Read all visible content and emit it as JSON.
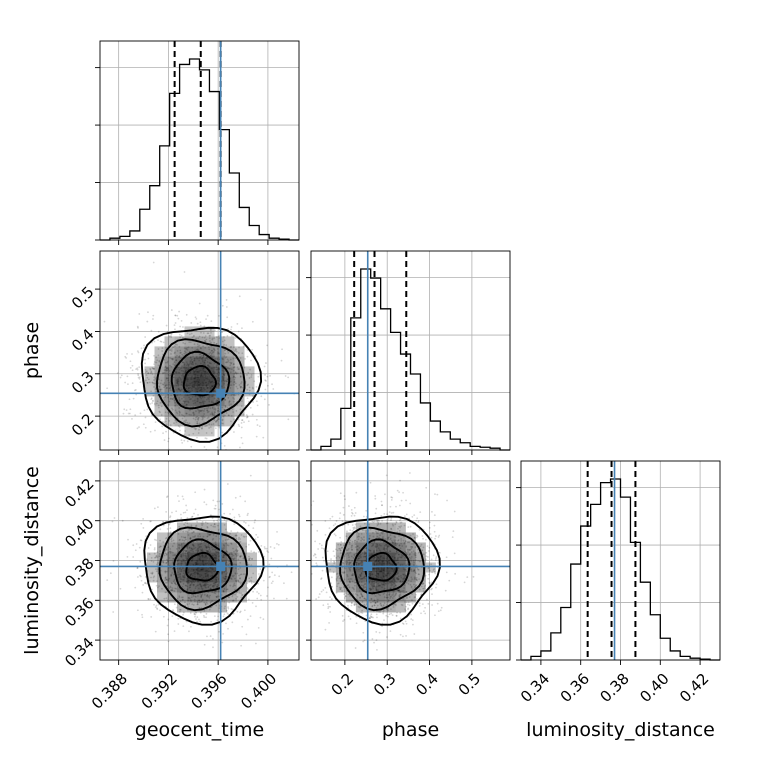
{
  "figure": {
    "type": "corner_plot"
  },
  "colors": {
    "truth": "#4682b4",
    "density": "#000000",
    "grid": "#b0b0b0"
  },
  "chart_data": {
    "type": "corner",
    "parameters": [
      {
        "name": "geocent_time",
        "label": "geocent_time",
        "range": [
          0.3865,
          0.4025
        ],
        "ticks": [
          0.388,
          0.392,
          0.396,
          0.4
        ],
        "tick_labels": [
          "0.388",
          "0.392",
          "0.396",
          "0.400"
        ],
        "truth": 0.3962,
        "quantiles": [
          0.3925,
          0.3946,
          0.3962
        ],
        "hist_bins": [
          0.3865,
          0.3873,
          0.3881,
          0.3889,
          0.3897,
          0.3905,
          0.3913,
          0.3921,
          0.3929,
          0.3937,
          0.3945,
          0.3953,
          0.3961,
          0.3969,
          0.3977,
          0.3985,
          0.3993,
          0.4001,
          0.4009,
          0.4017,
          0.4025
        ],
        "hist_counts": [
          0,
          0.01,
          0.02,
          0.05,
          0.17,
          0.3,
          0.52,
          0.81,
          0.97,
          1.0,
          0.94,
          0.82,
          0.61,
          0.37,
          0.18,
          0.08,
          0.03,
          0.01,
          0.005,
          0
        ]
      },
      {
        "name": "phase",
        "label": "phase",
        "range": [
          0.12,
          0.59
        ],
        "ticks": [
          0.2,
          0.3,
          0.4,
          0.5
        ],
        "tick_labels": [
          "0.2",
          "0.3",
          "0.4",
          "0.5"
        ],
        "truth": 0.254,
        "quantiles": [
          0.222,
          0.27,
          0.345
        ],
        "hist_bins": [
          0.12,
          0.1435,
          0.167,
          0.1905,
          0.214,
          0.2375,
          0.261,
          0.2845,
          0.308,
          0.3315,
          0.355,
          0.3785,
          0.402,
          0.4255,
          0.449,
          0.4725,
          0.496,
          0.5195,
          0.543,
          0.5665,
          0.59
        ],
        "hist_counts": [
          0,
          0.02,
          0.06,
          0.23,
          0.73,
          1.0,
          0.95,
          0.78,
          0.65,
          0.53,
          0.42,
          0.26,
          0.16,
          0.1,
          0.06,
          0.04,
          0.02,
          0.015,
          0.01,
          0
        ]
      },
      {
        "name": "luminosity_distance",
        "label": "luminosity_distance",
        "range": [
          0.33,
          0.43
        ],
        "ticks": [
          0.34,
          0.36,
          0.38,
          0.4,
          0.42
        ],
        "tick_labels": [
          "0.34",
          "0.36",
          "0.38",
          "0.40",
          "0.42"
        ],
        "truth": 0.377,
        "quantiles": [
          0.3635,
          0.3755,
          0.3875
        ],
        "hist_bins": [
          0.33,
          0.335,
          0.34,
          0.345,
          0.35,
          0.355,
          0.36,
          0.365,
          0.37,
          0.375,
          0.38,
          0.385,
          0.39,
          0.395,
          0.4,
          0.405,
          0.41,
          0.415,
          0.42,
          0.425,
          0.43
        ],
        "hist_counts": [
          0,
          0.02,
          0.05,
          0.15,
          0.29,
          0.53,
          0.74,
          0.86,
          0.98,
          1.0,
          0.9,
          0.65,
          0.43,
          0.25,
          0.12,
          0.05,
          0.02,
          0.01,
          0.005,
          0
        ]
      }
    ],
    "pairs": [
      {
        "x": "geocent_time",
        "y": "phase",
        "sample_center": [
          0.3945,
          0.282
        ],
        "sample_spread": [
          0.0022,
          0.062
        ],
        "correlation": 0.0
      },
      {
        "x": "geocent_time",
        "y": "luminosity_distance",
        "sample_center": [
          0.3947,
          0.3765
        ],
        "sample_spread": [
          0.0022,
          0.0125
        ],
        "correlation": 0.0
      },
      {
        "x": "phase",
        "y": "luminosity_distance",
        "sample_center": [
          0.285,
          0.3765
        ],
        "sample_spread": [
          0.062,
          0.0125
        ],
        "correlation": 0.0
      }
    ],
    "grid": true,
    "contour_levels": 4
  }
}
